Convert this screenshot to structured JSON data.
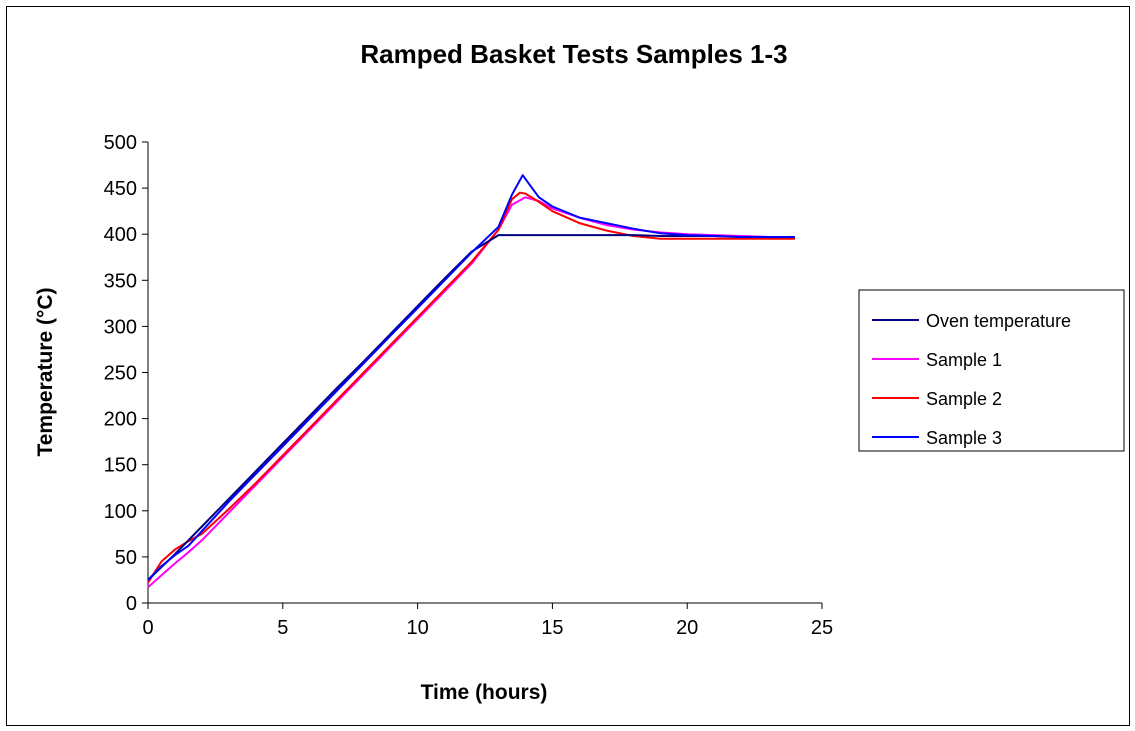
{
  "chart_data": {
    "type": "line",
    "title": "Ramped Basket Tests Samples 1-3",
    "xlabel": "Time (hours)",
    "ylabel": "Temperature (°C)",
    "xlim": [
      0,
      25
    ],
    "ylim": [
      0,
      500
    ],
    "xticks": [
      0,
      5,
      10,
      15,
      20,
      25
    ],
    "yticks": [
      0,
      50,
      100,
      150,
      200,
      250,
      300,
      350,
      400,
      450,
      500
    ],
    "grid": false,
    "legend_position": "right",
    "series": [
      {
        "name": "Oven temperature",
        "color": "#000080",
        "x": [
          0,
          1,
          2,
          3,
          4,
          5,
          6,
          7,
          8,
          9,
          10,
          11,
          12,
          13,
          14,
          15,
          16,
          17,
          18,
          19,
          20,
          21,
          22,
          23,
          24
        ],
        "y": [
          25,
          53,
          83,
          113,
          143,
          173,
          203,
          233,
          262,
          292,
          322,
          352,
          381,
          399,
          399,
          399,
          399,
          399,
          399,
          398,
          398,
          398,
          397,
          397,
          397
        ]
      },
      {
        "name": "Sample 1",
        "color": "#ff00ff",
        "x": [
          0,
          0.5,
          1,
          1.5,
          2,
          3,
          4,
          5,
          6,
          7,
          8,
          9,
          10,
          11,
          12,
          13,
          13.5,
          14,
          14.5,
          15,
          16,
          17,
          18,
          19,
          20,
          21,
          22,
          23,
          24
        ],
        "y": [
          17,
          30,
          43,
          55,
          68,
          98,
          128,
          158,
          188,
          218,
          248,
          278,
          308,
          338,
          368,
          405,
          432,
          440,
          436,
          428,
          418,
          410,
          405,
          402,
          400,
          399,
          398,
          397,
          396
        ]
      },
      {
        "name": "Sample 2",
        "color": "#ff0000",
        "x": [
          0,
          0.5,
          1,
          1.5,
          2,
          3,
          4,
          5,
          6,
          7,
          8,
          9,
          10,
          11,
          12,
          13,
          13.5,
          13.8,
          14,
          14.5,
          15,
          16,
          17,
          18,
          19,
          20,
          21,
          22,
          23,
          24
        ],
        "y": [
          22,
          45,
          58,
          67,
          75,
          102,
          130,
          160,
          190,
          220,
          250,
          280,
          310,
          340,
          370,
          405,
          438,
          445,
          444,
          435,
          425,
          412,
          404,
          398,
          395,
          395,
          395,
          395,
          395,
          395
        ]
      },
      {
        "name": "Sample 3",
        "color": "#0000ff",
        "x": [
          0,
          0.5,
          1,
          1.5,
          2,
          3,
          4,
          5,
          6,
          7,
          8,
          9,
          10,
          11,
          12,
          13,
          13.5,
          13.9,
          14.2,
          14.5,
          15,
          16,
          17,
          18,
          19,
          20,
          21,
          22,
          23,
          24
        ],
        "y": [
          25,
          40,
          52,
          62,
          78,
          110,
          140,
          170,
          200,
          230,
          260,
          290,
          320,
          350,
          380,
          408,
          443,
          464,
          452,
          440,
          430,
          418,
          412,
          406,
          401,
          399,
          398,
          397,
          397,
          397
        ]
      }
    ]
  }
}
